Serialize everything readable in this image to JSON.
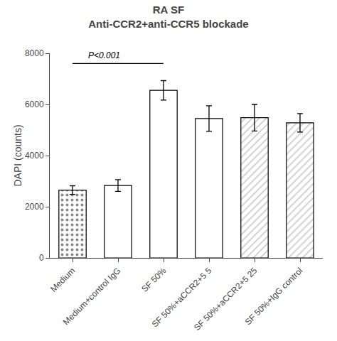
{
  "chart_data": {
    "type": "bar",
    "title": "RA SF",
    "subtitle": "Anti-CCR2+anti-CCR5 blockade",
    "ylabel": "DAPI (counts)",
    "categories": [
      "Medium",
      "Medium+control IgG",
      "SF 50%",
      "SF 50%+aCCR2+5 5",
      "SF 50%+aCCR2+5 25",
      "SF 50%+IgG control"
    ],
    "values": [
      2650,
      2830,
      6550,
      5450,
      5480,
      5280
    ],
    "errors": [
      170,
      230,
      380,
      500,
      520,
      360
    ],
    "colors": [
      "#888888",
      "#ffffff",
      "#ffffff",
      "#ffffff",
      "#cccccc",
      "#cccccc"
    ],
    "ylim": [
      0,
      8000
    ],
    "yticks": [
      0,
      2000,
      4000,
      6000,
      8000
    ],
    "grid": false,
    "annotations": [
      {
        "text": "P<0.001",
        "from": "Medium",
        "to": "SF 50%",
        "y": 7600
      }
    ]
  }
}
